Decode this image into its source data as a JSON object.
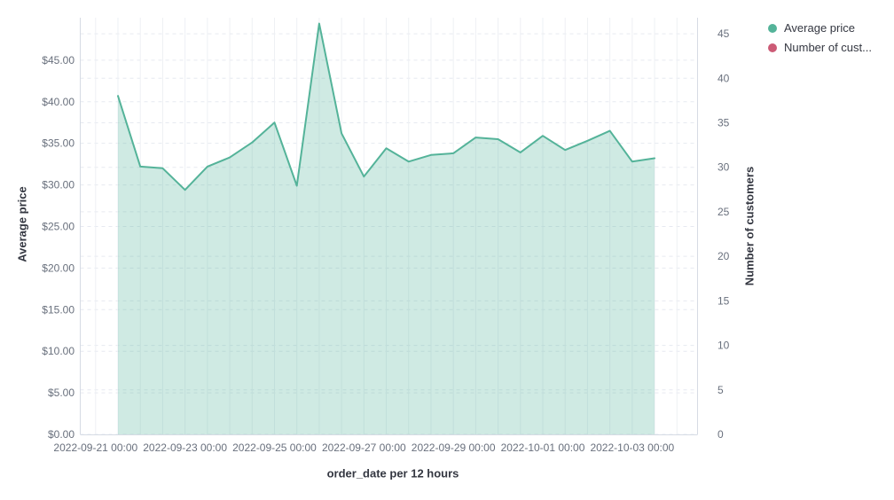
{
  "colors": {
    "avg_price_line": "#54b399",
    "avg_price_fill": "rgba(84,179,153,0.28)",
    "customers_dot": "#cc5b76",
    "grid_dashed": "#e6e9f0",
    "grid_vertical": "#eef0f4",
    "axis_line": "#d6dbe4",
    "tick_label": "#69707d",
    "axis_title": "#343741",
    "background": "#ffffff"
  },
  "legend": {
    "items": [
      {
        "label": "Average price",
        "color": "#54b399"
      },
      {
        "label": "Number of cust...",
        "color": "#cc5b76"
      }
    ]
  },
  "axis_titles": {
    "left": "Average price",
    "right": "Number of customers",
    "bottom": "order_date per 12 hours"
  },
  "chart_data": {
    "type": "area",
    "title": "",
    "xlabel": "order_date per 12 hours",
    "ylabel_left": "Average price",
    "ylabel_right": "Number of customers",
    "x_interval": "12 hours",
    "x": [
      "2022-09-21 12:00",
      "2022-09-22 00:00",
      "2022-09-22 12:00",
      "2022-09-23 00:00",
      "2022-09-23 12:00",
      "2022-09-24 00:00",
      "2022-09-24 12:00",
      "2022-09-25 00:00",
      "2022-09-25 12:00",
      "2022-09-26 00:00",
      "2022-09-26 12:00",
      "2022-09-27 00:00",
      "2022-09-27 12:00",
      "2022-09-28 00:00",
      "2022-09-28 12:00",
      "2022-09-29 00:00",
      "2022-09-29 12:00",
      "2022-09-30 00:00",
      "2022-09-30 12:00",
      "2022-10-01 00:00",
      "2022-10-01 12:00",
      "2022-10-02 00:00",
      "2022-10-02 12:00",
      "2022-10-03 00:00",
      "2022-10-03 12:00"
    ],
    "series": [
      {
        "name": "Average price",
        "axis": "left",
        "values": [
          40.7,
          32.2,
          32.0,
          29.4,
          32.2,
          33.3,
          35.1,
          37.5,
          29.9,
          49.4,
          36.2,
          31.0,
          34.4,
          32.8,
          33.6,
          33.8,
          35.7,
          35.5,
          33.9,
          35.9,
          34.2,
          35.3,
          36.5,
          32.8,
          33.2
        ]
      },
      {
        "name": "Number of customers",
        "axis": "right",
        "values": []
      }
    ],
    "left_axis": {
      "tick_labels": [
        "$0.00",
        "$5.00",
        "$10.00",
        "$15.00",
        "$20.00",
        "$25.00",
        "$30.00",
        "$35.00",
        "$40.00",
        "$45.00"
      ],
      "tick_values": [
        0,
        5,
        10,
        15,
        20,
        25,
        30,
        35,
        40,
        45
      ],
      "range": [
        0,
        50.1
      ]
    },
    "right_axis": {
      "tick_labels": [
        "0",
        "5",
        "10",
        "15",
        "20",
        "25",
        "30",
        "35",
        "40",
        "45"
      ],
      "tick_values": [
        0,
        5,
        10,
        15,
        20,
        25,
        30,
        35,
        40,
        45
      ],
      "range": [
        0,
        46.8
      ]
    },
    "x_tick_labels": [
      "2022-09-21 00:00",
      "2022-09-23 00:00",
      "2022-09-25 00:00",
      "2022-09-27 00:00",
      "2022-09-29 00:00",
      "2022-10-01 00:00",
      "2022-10-03 00:00"
    ],
    "grid": {
      "horizontal": "dashed",
      "vertical": "solid"
    },
    "legend_position": "top-right"
  }
}
